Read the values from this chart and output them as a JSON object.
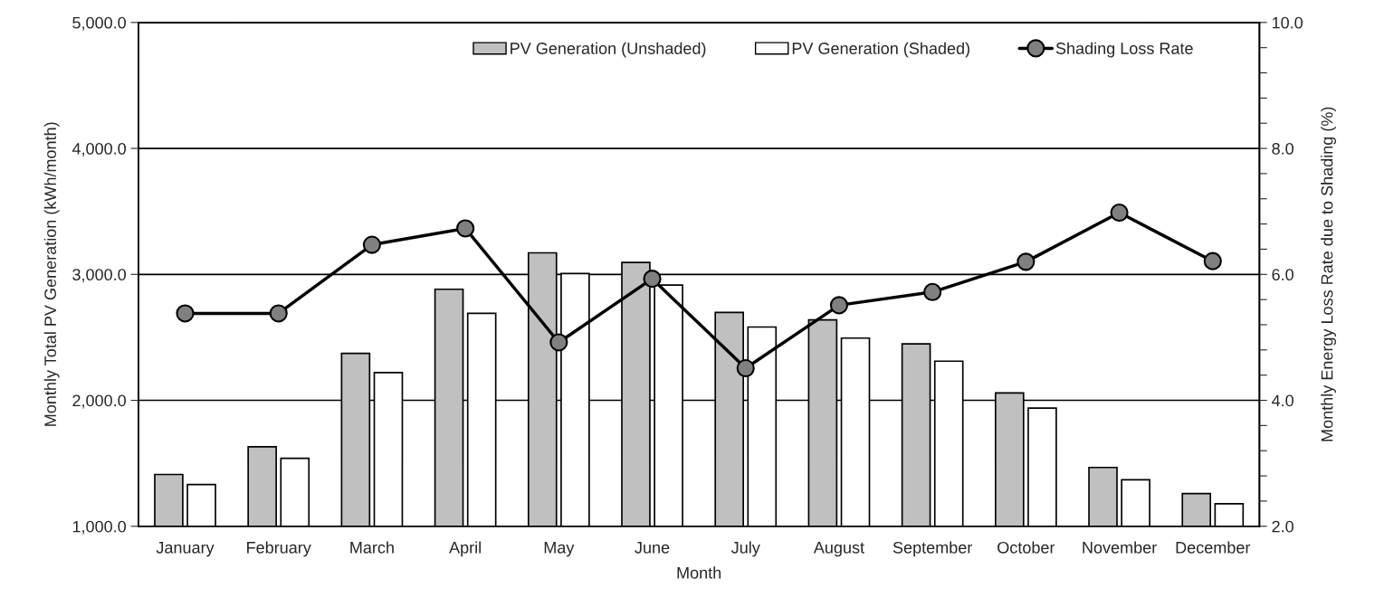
{
  "chart_data": {
    "type": "bar",
    "xlabel": "Month",
    "ylabel": "Monthly Total PV Generation (kWh/month)",
    "y2label": "Monthly Energy Loss Rate due to Shading (%)",
    "categories": [
      "January",
      "February",
      "March",
      "April",
      "May",
      "June",
      "July",
      "August",
      "September",
      "October",
      "November",
      "December"
    ],
    "series": [
      {
        "name": "PV Generation (Unshaded)",
        "color": "#c0c0c0",
        "values": [
          1411,
          1631,
          2373,
          2882,
          3171,
          3094,
          2698,
          2638,
          2448,
          2058,
          1467,
          1260
        ]
      },
      {
        "name": "PV Generation (Shaded)",
        "color": "#ffffff",
        "values": [
          1331,
          1540,
          2220,
          2690,
          3007,
          2915,
          2582,
          2494,
          2311,
          1938,
          1369,
          1179
        ]
      },
      {
        "name": "Shading Loss Rate",
        "type": "line",
        "axis": "y2",
        "color": "#000000",
        "marker": "circle",
        "values": [
          5.38,
          5.38,
          6.47,
          6.73,
          4.92,
          5.93,
          4.51,
          5.51,
          5.72,
          6.2,
          6.98,
          6.21
        ]
      }
    ],
    "ylim": [
      1000,
      5000
    ],
    "yticks": [
      {
        "value": 1000,
        "label": "1,000.0"
      },
      {
        "value": 2000,
        "label": "2,000.0"
      },
      {
        "value": 3000,
        "label": "3,000.0"
      },
      {
        "value": 4000,
        "label": "4,000.0"
      },
      {
        "value": 5000,
        "label": "5,000.0"
      }
    ],
    "y2lim": [
      2,
      10
    ],
    "y2ticks": [
      {
        "value": 2,
        "label": "2.0"
      },
      {
        "value": 2.4,
        "label": null
      },
      {
        "value": 2.8,
        "label": null
      },
      {
        "value": 3.2,
        "label": null
      },
      {
        "value": 3.6,
        "label": null
      },
      {
        "value": 4,
        "label": "4.0"
      },
      {
        "value": 4.4,
        "label": null
      },
      {
        "value": 4.8,
        "label": null
      },
      {
        "value": 5.2,
        "label": null
      },
      {
        "value": 5.6,
        "label": null
      },
      {
        "value": 6,
        "label": "6.0"
      },
      {
        "value": 6.4,
        "label": null
      },
      {
        "value": 6.8,
        "label": null
      },
      {
        "value": 7.2,
        "label": null
      },
      {
        "value": 7.6,
        "label": null
      },
      {
        "value": 8,
        "label": "8.0"
      },
      {
        "value": 8.4,
        "label": null
      },
      {
        "value": 8.8,
        "label": null
      },
      {
        "value": 9.2,
        "label": null
      },
      {
        "value": 9.6,
        "label": null
      },
      {
        "value": 10,
        "label": "10.0"
      }
    ],
    "grid": "y",
    "legend": "top"
  }
}
